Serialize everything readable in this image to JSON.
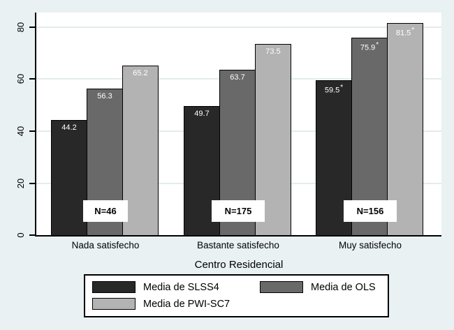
{
  "chart_data": {
    "type": "bar",
    "title": "",
    "xlabel": "Centro Residencial",
    "ylabel": "",
    "categories": [
      "Nada satisfecho",
      "Bastante satisfecho",
      "Muy satisfecho"
    ],
    "series": [
      {
        "name": "Media de SLSS4",
        "color": "#282828",
        "values": [
          44.2,
          49.7,
          59.5
        ],
        "starred": [
          false,
          false,
          true
        ]
      },
      {
        "name": "Media de OLS",
        "color": "#696969",
        "values": [
          56.3,
          63.7,
          75.9
        ],
        "starred": [
          false,
          false,
          true
        ]
      },
      {
        "name": "Media de PWI-SC7",
        "color": "#b3b3b3",
        "values": [
          65.2,
          73.5,
          81.5
        ],
        "starred": [
          false,
          false,
          true
        ]
      }
    ],
    "bar_value_labels": [
      [
        "44.2",
        "49.7",
        "59.5*"
      ],
      [
        "56.3",
        "63.7",
        "75.9*"
      ],
      [
        "65.2",
        "73.5",
        "81.5*"
      ]
    ],
    "group_n_labels": [
      "N=46",
      "N=175",
      "N=156"
    ],
    "yticks": [
      0,
      20,
      40,
      60,
      80
    ],
    "ylim": [
      0,
      85.6
    ],
    "grid": true,
    "gridline_values": [
      20,
      40,
      60,
      80
    ],
    "legend_position": "bottom",
    "legend_entries": [
      "Media de SLSS4",
      "Media de OLS",
      "Media de PWI-SC7"
    ]
  },
  "colors": {
    "figure_background": "#e9f1f3",
    "plot_background": "#ffffff",
    "gridline": "#e3ebed",
    "axis_line": "#000000",
    "bar_value_text": "#ffffff",
    "n_box_background": "#ffffff",
    "legend_background": "#ffffff",
    "text": "#000000"
  }
}
